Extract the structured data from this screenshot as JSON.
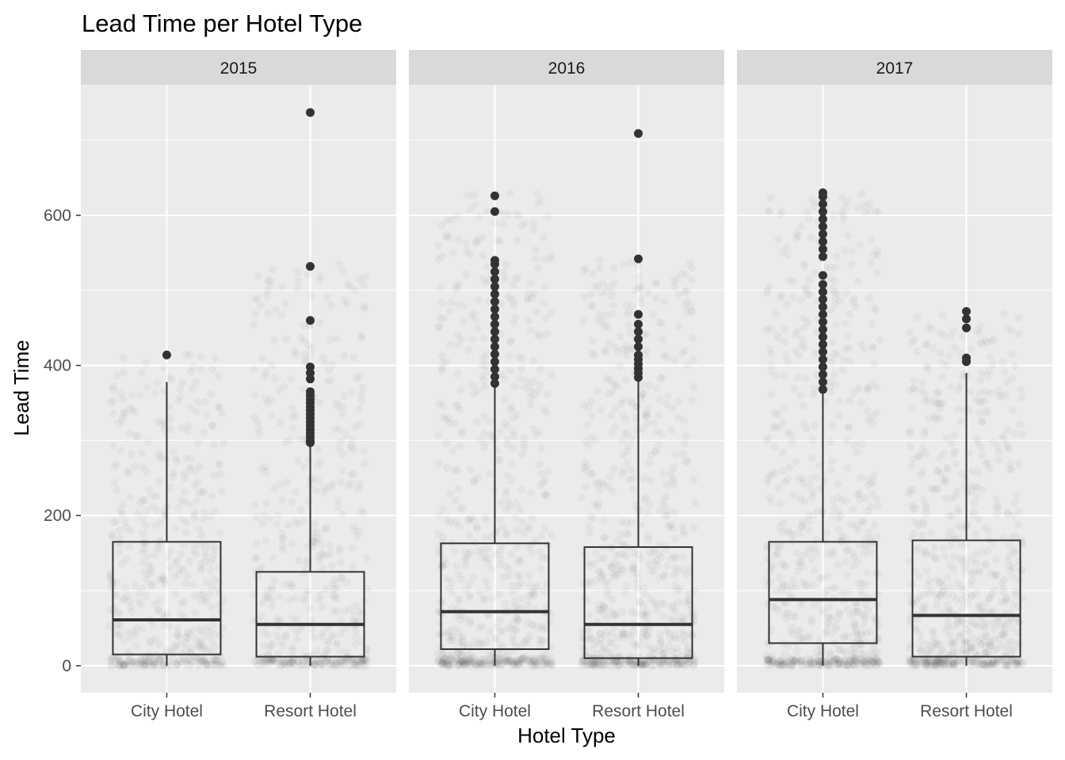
{
  "chart_data": {
    "type": "box",
    "title": "Lead Time per Hotel Type",
    "xlabel": "Hotel Type",
    "ylabel": "Lead Time",
    "categories": [
      "City Hotel",
      "Resort Hotel"
    ],
    "y_ticks": [
      0,
      200,
      400,
      600
    ],
    "ylim": [
      -36,
      774
    ],
    "grid": true,
    "jitter_points": true,
    "colors": {
      "panel_bg": "#ebebeb",
      "strip_bg": "#d9d9d9",
      "grid": "#ffffff",
      "box_line": "#333333",
      "jitter": "#4d4d4d"
    },
    "facets": [
      {
        "label": "2015",
        "boxes": [
          {
            "category": "City Hotel",
            "min": 0,
            "q1": 15,
            "median": 61,
            "q3": 165,
            "max": 378,
            "outliers": [
              414
            ]
          },
          {
            "category": "Resort Hotel",
            "min": 0,
            "q1": 12,
            "median": 55,
            "q3": 125,
            "max": 294,
            "outliers": [
              297,
              300,
              305,
              310,
              315,
              320,
              325,
              330,
              335,
              340,
              345,
              350,
              355,
              360,
              365,
              382,
              390,
              398,
              460,
              532,
              737
            ]
          }
        ],
        "jitter_max": [
          418,
          540
        ]
      },
      {
        "label": "2016",
        "boxes": [
          {
            "category": "City Hotel",
            "min": 0,
            "q1": 22,
            "median": 72,
            "q3": 163,
            "max": 374,
            "outliers": [
              376,
              385,
              395,
              405,
              415,
              425,
              435,
              445,
              455,
              465,
              475,
              485,
              495,
              505,
              515,
              525,
              535,
              540,
              605,
              626
            ]
          },
          {
            "category": "Resort Hotel",
            "min": 0,
            "q1": 10,
            "median": 55,
            "q3": 158,
            "max": 380,
            "outliers": [
              384,
              390,
              396,
              402,
              408,
              414,
              425,
              435,
              445,
              455,
              468,
              542,
              709
            ]
          }
        ],
        "jitter_max": [
          630,
          545
        ]
      },
      {
        "label": "2017",
        "boxes": [
          {
            "category": "City Hotel",
            "min": 0,
            "q1": 30,
            "median": 88,
            "q3": 165,
            "max": 365,
            "outliers": [
              368,
              378,
              388,
              398,
              408,
              418,
              428,
              438,
              448,
              458,
              468,
              478,
              488,
              498,
              508,
              520,
              545,
              555,
              565,
              575,
              585,
              595,
              605,
              615,
              625,
              630
            ]
          },
          {
            "category": "Resort Hotel",
            "min": 0,
            "q1": 12,
            "median": 67,
            "q3": 167,
            "max": 390,
            "outliers": [
              405,
              410,
              450,
              462,
              472
            ]
          }
        ],
        "jitter_max": [
          630,
          470
        ]
      }
    ]
  }
}
